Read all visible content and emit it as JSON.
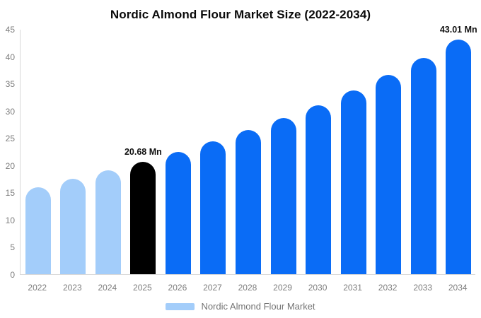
{
  "chart_data": {
    "type": "bar",
    "title": "Nordic Almond Flour Market Size (2022-2034)",
    "xlabel": "",
    "ylabel": "",
    "unit": "Mn",
    "categories": [
      "2022",
      "2023",
      "2024",
      "2025",
      "2026",
      "2027",
      "2028",
      "2029",
      "2030",
      "2031",
      "2032",
      "2033",
      "2034"
    ],
    "values": [
      15.95,
      17.5,
      19.05,
      20.68,
      22.43,
      24.33,
      26.4,
      28.64,
      31.06,
      33.7,
      36.56,
      39.66,
      43.01
    ],
    "ylim": [
      0,
      45
    ],
    "yticks": [
      0,
      5,
      10,
      15,
      20,
      25,
      30,
      35,
      40,
      45
    ],
    "grid": false,
    "legend_position": "bottom",
    "annotations": [
      {
        "category": "2025",
        "text": "20.68 Mn"
      },
      {
        "category": "2034",
        "text": "43.01 Mn"
      }
    ],
    "bar_colors": [
      "#a3cdfa",
      "#a3cdfa",
      "#a3cdfa",
      "#000000",
      "#0a6cf6",
      "#0a6cf6",
      "#0a6cf6",
      "#0a6cf6",
      "#0a6cf6",
      "#0a6cf6",
      "#0a6cf6",
      "#0a6cf6",
      "#0a6cf6"
    ]
  },
  "legend": {
    "label": "Nordic Almond Flour Market",
    "swatch_color": "#a3cdfa"
  },
  "colors": {
    "past_bar": "#a3cdfa",
    "highlight_bar": "#000000",
    "forecast_bar": "#0a6cf6",
    "axis_line": "#d9d9d9",
    "tick_text": "#7d7d7d",
    "legend_text": "#737373",
    "annotation_text": "#111111",
    "title_text": "#0a0a0a",
    "background": "#ffffff"
  }
}
